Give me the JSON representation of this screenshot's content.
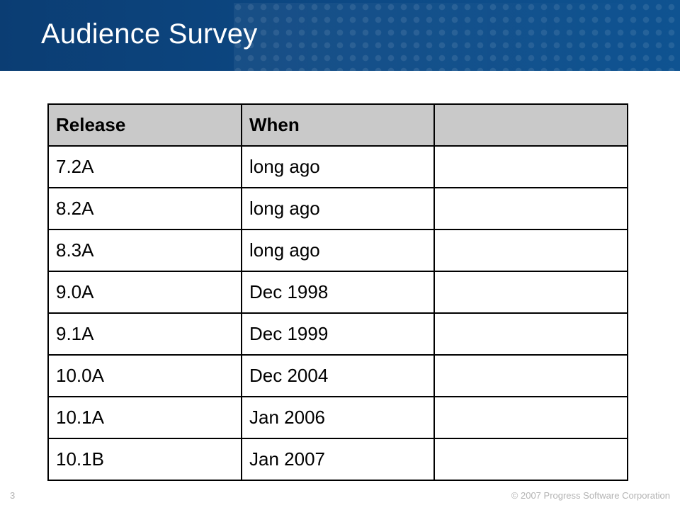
{
  "slide": {
    "title": "Audience Survey",
    "page_number": "3",
    "copyright": "© 2007 Progress Software Corporation"
  },
  "table": {
    "headers": [
      "Release",
      "When",
      ""
    ],
    "rows": [
      [
        "7.2A",
        "long ago",
        ""
      ],
      [
        "8.2A",
        "long ago",
        ""
      ],
      [
        "8.3A",
        "long ago",
        ""
      ],
      [
        "9.0A",
        "Dec 1998",
        ""
      ],
      [
        "9.1A",
        "Dec 1999",
        ""
      ],
      [
        "10.0A",
        "Dec 2004",
        ""
      ],
      [
        "10.1A",
        "Jan 2006",
        ""
      ],
      [
        "10.1B",
        "Jan 2007",
        ""
      ]
    ]
  }
}
